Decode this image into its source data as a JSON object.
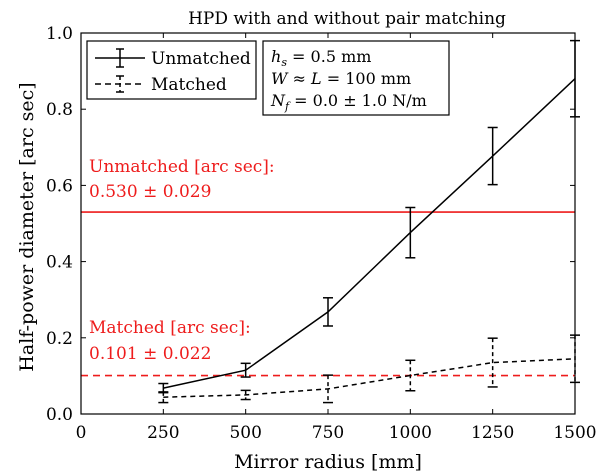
{
  "chart_data": {
    "type": "line",
    "title": "HPD with and without pair matching",
    "xlabel": "Mirror radius [mm]",
    "ylabel": "Half-power diameter [arc sec]",
    "xlim": [
      0,
      1500
    ],
    "ylim": [
      0,
      1.0
    ],
    "xticks": [
      0,
      250,
      500,
      750,
      1000,
      1250,
      1500
    ],
    "yticks": [
      0,
      0.2,
      0.4,
      0.6,
      0.8,
      1.0
    ],
    "xtick_labels": [
      "0",
      "250",
      "500",
      "750",
      "1000",
      "1250",
      "1500"
    ],
    "ytick_labels": [
      "0.0",
      "0.2",
      "0.4",
      "0.6",
      "0.8",
      "1.0"
    ],
    "grid": false,
    "legend_position": "top-left",
    "series": [
      {
        "name": "Unmatched",
        "style": "solid",
        "color": "#000000",
        "x": [
          250,
          500,
          750,
          1000,
          1250,
          1500
        ],
        "y": [
          0.068,
          0.115,
          0.268,
          0.476,
          0.677,
          0.88
        ],
        "err": [
          0.012,
          0.018,
          0.037,
          0.066,
          0.075,
          0.1
        ]
      },
      {
        "name": "Matched",
        "style": "dashed",
        "color": "#000000",
        "x": [
          250,
          500,
          750,
          1000,
          1250,
          1500
        ],
        "y": [
          0.044,
          0.05,
          0.066,
          0.101,
          0.135,
          0.145
        ],
        "err": [
          0.014,
          0.012,
          0.036,
          0.04,
          0.064,
          0.062
        ]
      }
    ],
    "reference_lines": [
      {
        "name": "Unmatched [arc sec]:",
        "value_text": "0.530 ± 0.029",
        "y": 0.53,
        "style": "solid",
        "color": "#ee1c1c"
      },
      {
        "name": "Matched [arc sec]:",
        "value_text": "0.101 ± 0.022",
        "y": 0.101,
        "style": "dashed",
        "color": "#ee1c1c"
      }
    ],
    "params_box": {
      "lines": [
        "hs = 0.5 mm",
        "W ≈ L = 100 mm",
        "Nf = 0.0 ± 1.0 N/m"
      ]
    }
  }
}
